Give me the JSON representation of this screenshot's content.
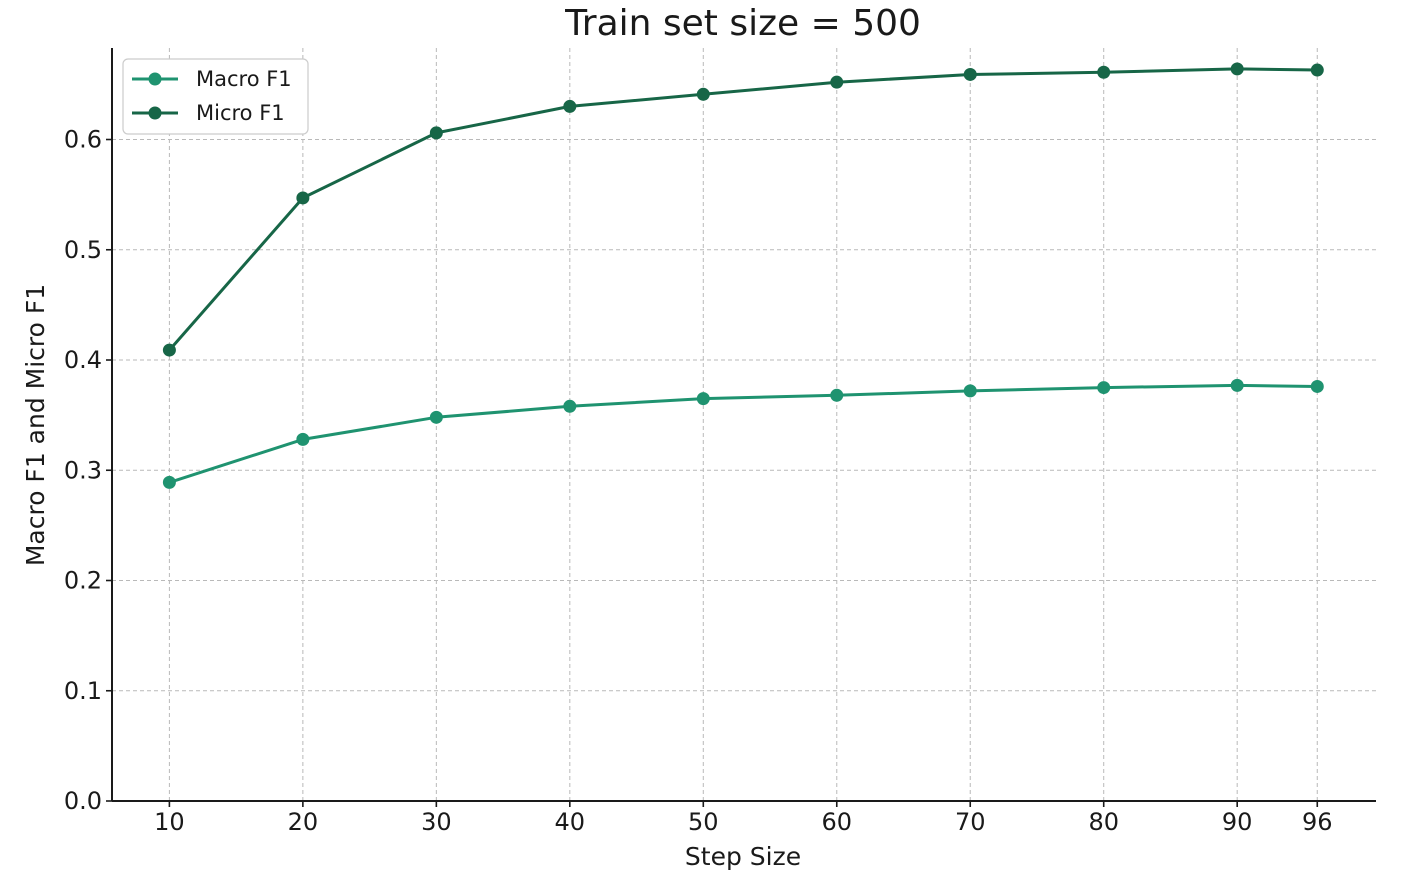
{
  "chart_data": {
    "type": "line",
    "title": "Train set size = 500",
    "xlabel": "Step Size",
    "ylabel": "Macro F1 and Micro F1",
    "x": [
      10,
      20,
      30,
      40,
      50,
      60,
      70,
      80,
      90,
      96
    ],
    "x_tick_labels": [
      "10",
      "20",
      "30",
      "40",
      "50",
      "60",
      "70",
      "80",
      "90",
      "96"
    ],
    "y_ticks": [
      0.0,
      0.1,
      0.2,
      0.3,
      0.4,
      0.5,
      0.6
    ],
    "y_tick_labels": [
      "0.0",
      "0.1",
      "0.2",
      "0.3",
      "0.4",
      "0.5",
      "0.6"
    ],
    "xlim": [
      5.7,
      100.4
    ],
    "ylim": [
      0.0,
      0.683
    ],
    "grid": true,
    "legend_position": "top-left",
    "series": [
      {
        "name": "Macro F1",
        "color": "#1f9370",
        "values": [
          0.289,
          0.328,
          0.348,
          0.358,
          0.365,
          0.368,
          0.372,
          0.375,
          0.377,
          0.376
        ]
      },
      {
        "name": "Micro F1",
        "color": "#176647",
        "values": [
          0.409,
          0.547,
          0.606,
          0.63,
          0.641,
          0.652,
          0.659,
          0.661,
          0.664,
          0.663
        ]
      }
    ]
  }
}
